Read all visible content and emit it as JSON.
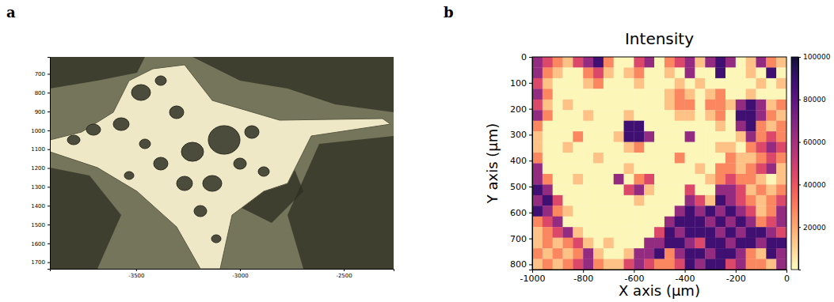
{
  "chart_data": [
    {
      "type": "image",
      "panel": "a",
      "xlim": [
        -3915,
        -2260
      ],
      "ylim": [
        610,
        1735
      ],
      "xticks": [
        -3500,
        -3000,
        -2500
      ],
      "yticks": [
        700,
        800,
        900,
        1000,
        1100,
        1200,
        1300,
        1400,
        1500,
        1600,
        1700
      ]
    },
    {
      "type": "heatmap",
      "panel": "b",
      "title": "Intensity",
      "x_label": "X axis (μm)",
      "y_label": "Y axis (μm)",
      "xlim": [
        -1000,
        0
      ],
      "ylim": [
        0,
        820
      ],
      "xticks": [
        -1000,
        -800,
        -600,
        -400,
        -200,
        0
      ],
      "yticks": [
        0,
        100,
        200,
        300,
        400,
        500,
        600,
        700,
        800
      ],
      "x": [
        -980,
        -940,
        -900,
        -860,
        -820,
        -780,
        -740,
        -700,
        -660,
        -620,
        -580,
        -540,
        -500,
        -460,
        -420,
        -380,
        -340,
        -300,
        -260,
        -220,
        -180,
        -140,
        -100,
        -60,
        -20
      ],
      "y": [
        20.5,
        61.5,
        102.5,
        143.5,
        184.5,
        225.5,
        266.5,
        307.5,
        348.5,
        389.5,
        430.5,
        471.5,
        512.5,
        553.5,
        594.5,
        635.5,
        676.5,
        717.5,
        758.5,
        799.5
      ],
      "z": [
        [
          65000,
          45000,
          28000,
          14000,
          45000,
          65000,
          88000,
          28000,
          2000,
          2000,
          45000,
          65000,
          2000,
          28000,
          45000,
          65000,
          14000,
          65000,
          88000,
          65000,
          2000,
          14000,
          65000,
          28000,
          14000
        ],
        [
          65000,
          28000,
          14000,
          2000,
          2000,
          28000,
          45000,
          14000,
          2000,
          14000,
          28000,
          2000,
          2000,
          14000,
          2000,
          65000,
          2000,
          2000,
          88000,
          2000,
          2000,
          14000,
          2000,
          88000,
          2000
        ],
        [
          45000,
          14000,
          2000,
          2000,
          2000,
          14000,
          28000,
          2000,
          2000,
          2000,
          14000,
          2000,
          2000,
          2000,
          14000,
          2000,
          14000,
          2000,
          2000,
          2000,
          2000,
          2000,
          14000,
          2000,
          14000
        ],
        [
          65000,
          28000,
          2000,
          2000,
          2000,
          2000,
          2000,
          2000,
          2000,
          2000,
          2000,
          2000,
          2000,
          14000,
          28000,
          14000,
          2000,
          14000,
          28000,
          2000,
          2000,
          14000,
          2000,
          2000,
          2000
        ],
        [
          45000,
          14000,
          2000,
          14000,
          2000,
          2000,
          2000,
          2000,
          2000,
          2000,
          2000,
          2000,
          2000,
          14000,
          28000,
          28000,
          2000,
          28000,
          28000,
          14000,
          65000,
          88000,
          65000,
          14000,
          28000
        ],
        [
          65000,
          28000,
          2000,
          2000,
          2000,
          14000,
          2000,
          2000,
          2000,
          14000,
          2000,
          2000,
          2000,
          2000,
          14000,
          14000,
          2000,
          14000,
          28000,
          2000,
          88000,
          88000,
          65000,
          28000,
          14000
        ],
        [
          28000,
          2000,
          2000,
          2000,
          2000,
          2000,
          2000,
          2000,
          2000,
          88000,
          88000,
          2000,
          2000,
          2000,
          2000,
          2000,
          2000,
          2000,
          14000,
          2000,
          65000,
          88000,
          28000,
          14000,
          28000
        ],
        [
          14000,
          2000,
          2000,
          2000,
          28000,
          2000,
          2000,
          2000,
          14000,
          88000,
          88000,
          65000,
          2000,
          2000,
          2000,
          65000,
          2000,
          2000,
          2000,
          2000,
          14000,
          65000,
          28000,
          45000,
          28000
        ],
        [
          14000,
          2000,
          2000,
          14000,
          2000,
          2000,
          2000,
          2000,
          2000,
          14000,
          28000,
          2000,
          2000,
          2000,
          2000,
          2000,
          2000,
          2000,
          14000,
          14000,
          2000,
          28000,
          45000,
          65000,
          45000
        ],
        [
          28000,
          2000,
          2000,
          2000,
          2000,
          2000,
          14000,
          2000,
          2000,
          2000,
          2000,
          2000,
          2000,
          2000,
          28000,
          2000,
          2000,
          2000,
          2000,
          28000,
          14000,
          14000,
          28000,
          45000,
          28000
        ],
        [
          65000,
          2000,
          2000,
          2000,
          2000,
          2000,
          2000,
          2000,
          2000,
          14000,
          2000,
          2000,
          2000,
          2000,
          2000,
          2000,
          14000,
          2000,
          28000,
          28000,
          14000,
          28000,
          45000,
          65000,
          14000
        ],
        [
          65000,
          28000,
          2000,
          2000,
          14000,
          2000,
          2000,
          2000,
          65000,
          2000,
          28000,
          45000,
          2000,
          2000,
          2000,
          2000,
          2000,
          14000,
          28000,
          45000,
          28000,
          28000,
          14000,
          2000,
          14000
        ],
        [
          88000,
          65000,
          2000,
          2000,
          2000,
          2000,
          2000,
          2000,
          2000,
          45000,
          65000,
          14000,
          2000,
          2000,
          2000,
          45000,
          2000,
          2000,
          65000,
          65000,
          45000,
          14000,
          28000,
          14000,
          28000
        ],
        [
          65000,
          88000,
          45000,
          2000,
          2000,
          2000,
          2000,
          2000,
          2000,
          2000,
          14000,
          2000,
          2000,
          2000,
          2000,
          65000,
          45000,
          14000,
          88000,
          65000,
          45000,
          28000,
          14000,
          28000,
          45000
        ],
        [
          88000,
          65000,
          28000,
          14000,
          2000,
          2000,
          2000,
          2000,
          2000,
          2000,
          2000,
          2000,
          2000,
          2000,
          65000,
          88000,
          65000,
          88000,
          65000,
          88000,
          65000,
          45000,
          14000,
          28000,
          65000
        ],
        [
          28000,
          45000,
          65000,
          2000,
          2000,
          2000,
          2000,
          2000,
          2000,
          2000,
          2000,
          2000,
          2000,
          65000,
          88000,
          88000,
          88000,
          65000,
          88000,
          65000,
          88000,
          65000,
          28000,
          45000,
          65000
        ],
        [
          14000,
          28000,
          45000,
          65000,
          14000,
          2000,
          2000,
          2000,
          2000,
          2000,
          2000,
          2000,
          45000,
          88000,
          65000,
          88000,
          88000,
          88000,
          65000,
          88000,
          65000,
          88000,
          88000,
          65000,
          45000
        ],
        [
          14000,
          28000,
          14000,
          28000,
          45000,
          14000,
          2000,
          14000,
          2000,
          2000,
          2000,
          65000,
          65000,
          88000,
          88000,
          65000,
          45000,
          88000,
          88000,
          65000,
          88000,
          88000,
          65000,
          88000,
          88000
        ],
        [
          28000,
          14000,
          28000,
          14000,
          28000,
          65000,
          14000,
          2000,
          2000,
          14000,
          65000,
          65000,
          88000,
          28000,
          65000,
          88000,
          88000,
          65000,
          88000,
          88000,
          65000,
          28000,
          14000,
          88000,
          65000
        ],
        [
          14000,
          28000,
          14000,
          28000,
          45000,
          65000,
          28000,
          14000,
          14000,
          45000,
          65000,
          45000,
          28000,
          28000,
          45000,
          88000,
          65000,
          88000,
          88000,
          45000,
          65000,
          28000,
          28000,
          14000,
          65000
        ]
      ],
      "colorbar": {
        "range": [
          0,
          100000
        ],
        "ticks": [
          20000,
          40000,
          60000,
          80000,
          100000
        ]
      }
    }
  ]
}
